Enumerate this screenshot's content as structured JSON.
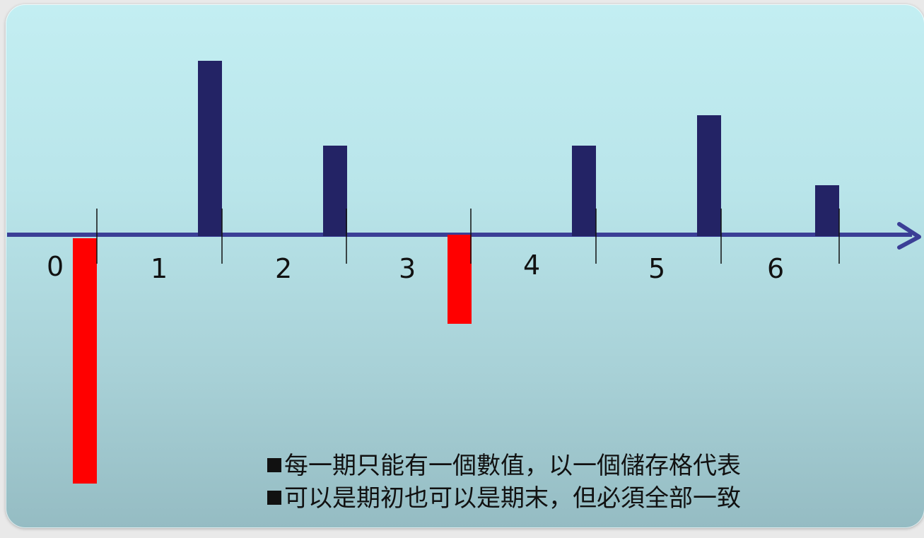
{
  "period_labels": [
    "0",
    "1",
    "2",
    "3",
    "4",
    "5",
    "6"
  ],
  "notes": [
    "每一期只能有一個數值，以一個儲存格代表",
    "可以是期初也可以是期末，但必須全部一致"
  ],
  "colors": {
    "axis": "#3b3f96",
    "positive_bar": "#232365",
    "negative_bar": "#ff0000",
    "text": "#111111"
  }
}
